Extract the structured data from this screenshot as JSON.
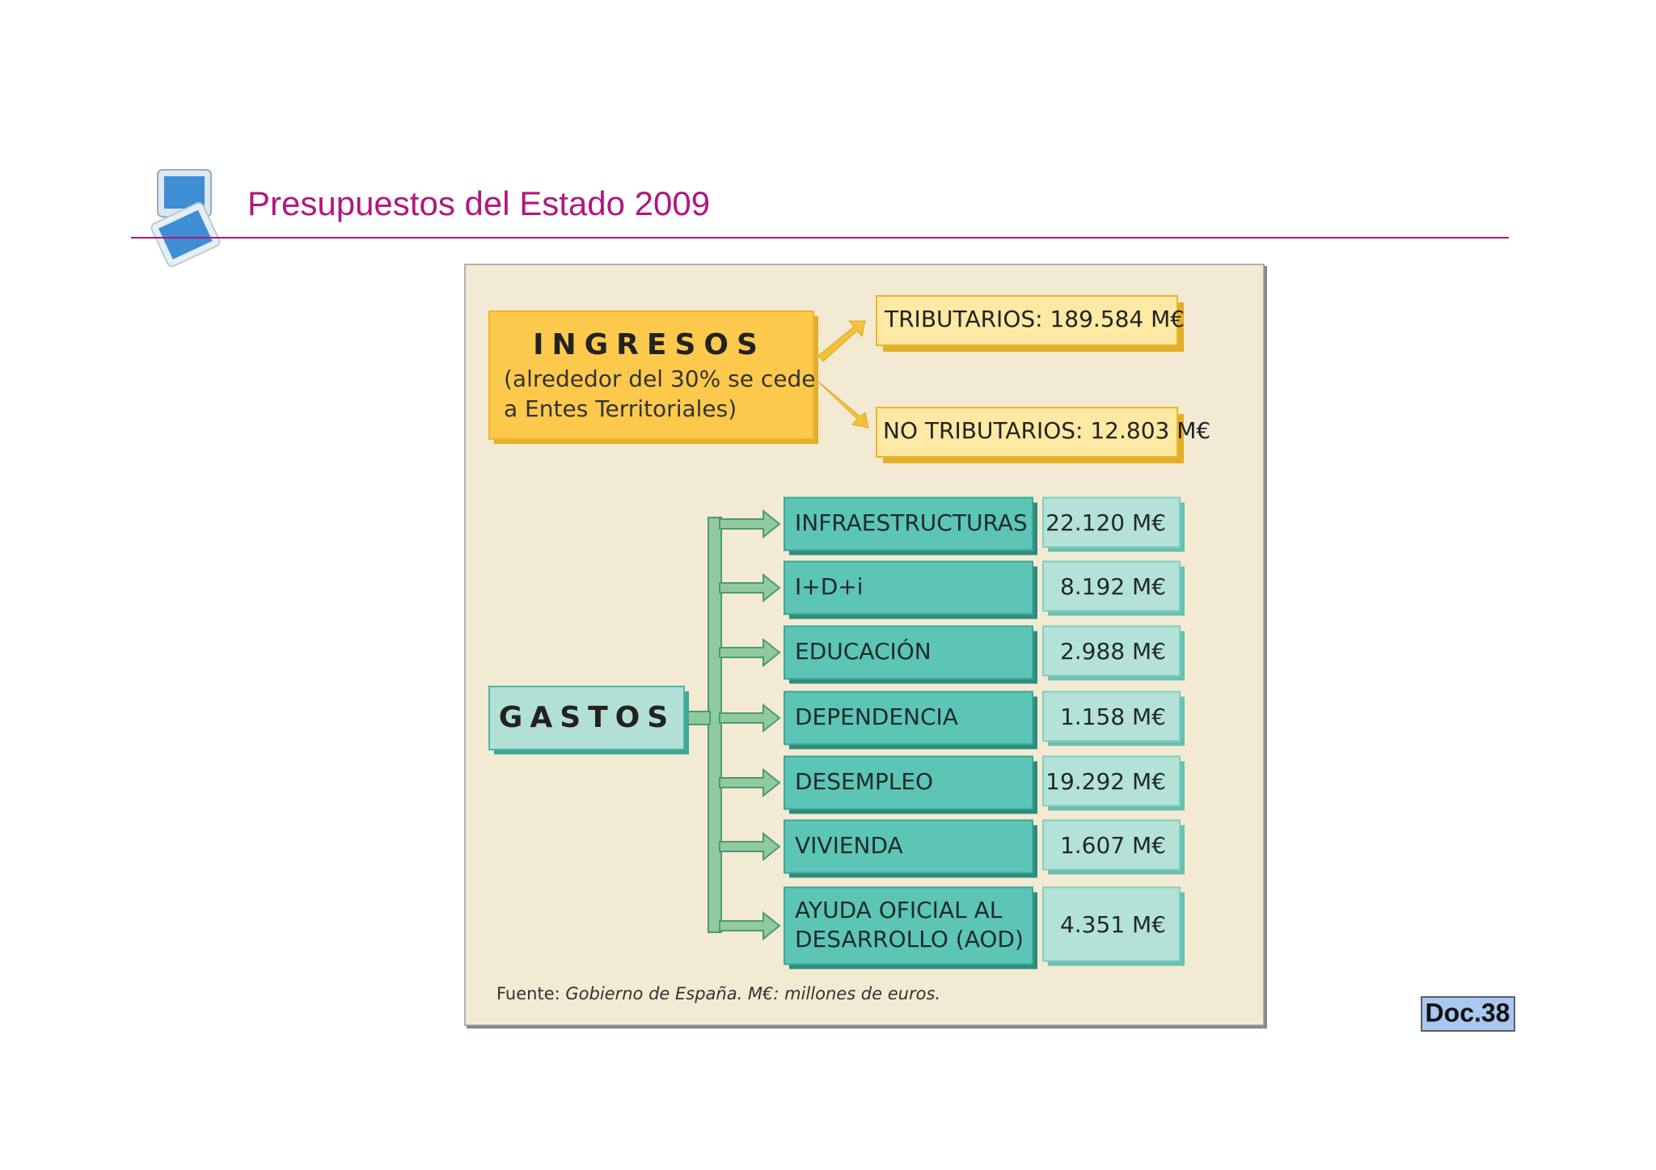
{
  "header": {
    "title": "Presupuestos del Estado 2009"
  },
  "ingresos": {
    "label": "INGRESOS",
    "note": [
      "(alrededor del 30% se cede",
      "a Entes Territoriales)"
    ],
    "items": [
      "TRIBUTARIOS: 189.584 M€",
      "NO TRIBUTARIOS: 12.803 M€"
    ]
  },
  "gastos": {
    "label": "GASTOS",
    "items": [
      {
        "label": [
          "INFRAESTRUCTURAS"
        ],
        "value": "22.120 M€"
      },
      {
        "label": [
          "I+D+i"
        ],
        "value": "8.192 M€"
      },
      {
        "label": [
          "EDUCACIÓN"
        ],
        "value": "2.988 M€"
      },
      {
        "label": [
          "DEPENDENCIA"
        ],
        "value": "1.158 M€"
      },
      {
        "label": [
          "DESEMPLEO"
        ],
        "value": "19.292 M€"
      },
      {
        "label": [
          "VIVIENDA"
        ],
        "value": "1.607 M€"
      },
      {
        "label": [
          "AYUDA OFICIAL AL",
          "DESARROLLO (AOD)"
        ],
        "value": "4.351 M€"
      }
    ]
  },
  "source": {
    "prefix": "Fuente:",
    "text": "Gobierno de España. M€: millones de euros."
  },
  "doc_label": "Doc.38"
}
